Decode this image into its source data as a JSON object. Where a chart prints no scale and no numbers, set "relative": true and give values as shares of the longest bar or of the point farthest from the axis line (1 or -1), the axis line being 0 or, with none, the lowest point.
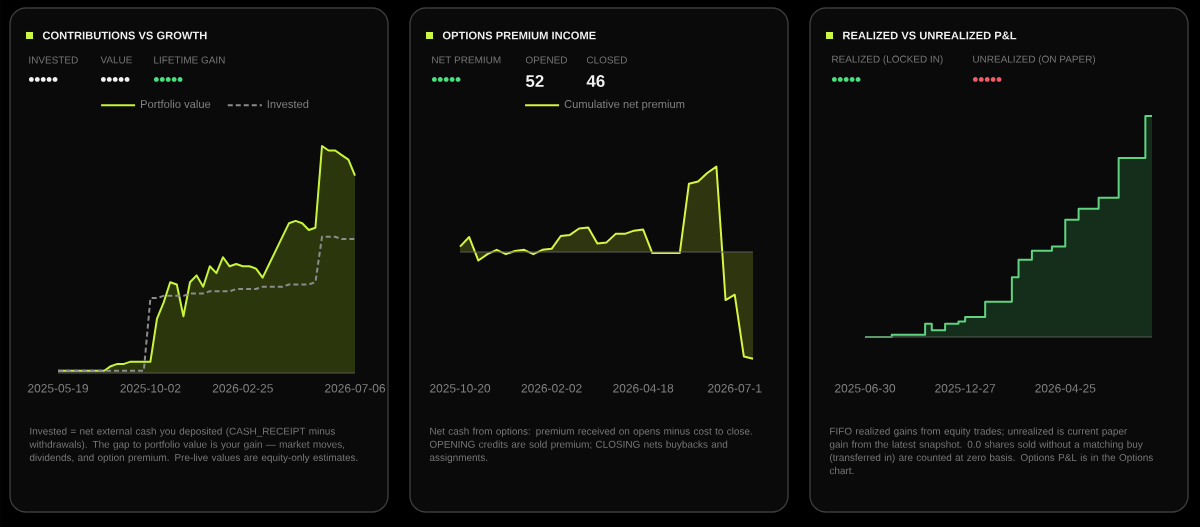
{
  "chart_data": [
    {
      "type": "area",
      "title": "CONTRIBUTIONS VS GROWTH",
      "relative": true,
      "legend": "top",
      "annotations": [
        "INVESTED",
        "•••••",
        "VALUE",
        "•••••",
        "LIFETIME GAIN",
        "•••••",
        "Invested = net external cash you deposited (CASH_RECEIPT minus withdrawals). The gap to portfolio value is your gain — market moves, dividends, and option premium. Pre-live values are equity-only estimates."
      ],
      "categories": [
        "2025-05-19",
        null,
        null,
        null,
        null,
        null,
        null,
        null,
        null,
        null,
        null,
        null,
        null,
        null,
        "2025-10-02",
        null,
        null,
        null,
        null,
        null,
        null,
        null,
        null,
        null,
        null,
        null,
        null,
        null,
        "2026-02-25",
        null,
        null,
        null,
        null,
        null,
        null,
        null,
        null,
        null,
        null,
        null,
        null,
        null,
        null,
        null,
        null,
        "2026-07-06"
      ],
      "series": [
        {
          "name": "Portfolio value",
          "color": "#c8f53a",
          "type": "area",
          "values": [
            0.01,
            0.01,
            0.01,
            0.01,
            0.01,
            0.01,
            0.01,
            0.01,
            0.03,
            0.04,
            0.04,
            0.05,
            0.05,
            0.05,
            0.05,
            0.24,
            0.31,
            0.4,
            0.39,
            0.25,
            0.4,
            0.43,
            0.38,
            0.47,
            0.44,
            0.51,
            0.47,
            0.48,
            0.47,
            0.47,
            0.46,
            0.42,
            0.48,
            0.54,
            0.6,
            0.66,
            0.67,
            0.66,
            0.63,
            0.64,
            1,
            0.98,
            0.98,
            0.96,
            0.94,
            0.87
          ]
        },
        {
          "name": "Invested",
          "color": "#8c8c8c",
          "type": "line",
          "line_style": "dashed",
          "values": [
            0.01,
            0.01,
            0.01,
            0.01,
            0.01,
            0.01,
            0.01,
            0.01,
            0.01,
            0.01,
            0.01,
            0.01,
            0.01,
            0.01,
            0.33,
            0.33,
            0.34,
            0.34,
            0.34,
            0.34,
            0.35,
            0.35,
            0.35,
            0.36,
            0.36,
            0.36,
            0.36,
            0.37,
            0.37,
            0.37,
            0.37,
            0.38,
            0.38,
            0.38,
            0.38,
            0.39,
            0.39,
            0.39,
            0.39,
            0.4,
            0.6,
            0.6,
            0.6,
            0.59,
            0.59,
            0.59
          ]
        }
      ]
    },
    {
      "type": "area",
      "title": "OPTIONS PREMIUM INCOME",
      "relative": true,
      "legend": "top",
      "annotations": [
        "NET PREMIUM",
        "•••••",
        "OPENED",
        "52",
        "CLOSED",
        "46",
        "Net cash from options: premium received on opens minus cost to close. OPENING credits are sold premium; CLOSING nets buybacks and assignments."
      ],
      "categories": [
        "2025-10-20",
        null,
        null,
        null,
        null,
        null,
        null,
        null,
        null,
        null,
        "2026-02-02",
        null,
        null,
        null,
        null,
        null,
        null,
        null,
        null,
        null,
        "2026-04-18",
        null,
        null,
        null,
        null,
        null,
        null,
        null,
        null,
        null,
        "2026-07-1",
        null,
        null
      ],
      "series": [
        {
          "name": "Cumulative net premium",
          "color": "#d7f542",
          "values": [
            0.05,
            0.14,
            -0.08,
            -0.02,
            0.02,
            -0.02,
            0.01,
            0.02,
            -0.02,
            0.02,
            0.03,
            0.15,
            0.16,
            0.22,
            0.23,
            0.08,
            0.09,
            0.17,
            0.17,
            0.2,
            0.21,
            -0.01,
            -0.01,
            -0.01,
            -0.01,
            0.64,
            0.66,
            0.74,
            0.8,
            -0.45,
            -0.4,
            -0.98,
            -1
          ]
        }
      ]
    },
    {
      "type": "step",
      "title": "REALIZED VS UNREALIZED P&L",
      "relative": true,
      "annotations": [
        "REALIZED (LOCKED IN)",
        "•••••",
        "UNREALIZED (ON PAPER)",
        "•••••",
        "FIFO realized gains from equity trades; unrealized is current paper gain from the latest snapshot. 0.0 shares sold without a matching buy (transferred in) are counted at zero basis. Options P&L is in the Options chart."
      ],
      "categories": [
        "2025-06-30",
        null,
        null,
        null,
        null,
        null,
        null,
        null,
        null,
        null,
        null,
        null,
        null,
        null,
        null,
        "2025-12-27",
        null,
        null,
        null,
        null,
        null,
        null,
        null,
        null,
        null,
        null,
        null,
        null,
        null,
        null,
        "2026-04-25",
        null,
        null,
        null,
        null,
        null,
        null,
        null,
        null,
        null,
        null,
        null,
        null,
        null
      ],
      "series": [
        {
          "color": "#5fd37f",
          "values": [
            0,
            0,
            0,
            0,
            0.01,
            0.01,
            0.01,
            0.01,
            0.01,
            0.06,
            0.03,
            0.03,
            0.06,
            0.06,
            0.07,
            0.09,
            0.09,
            0.09,
            0.16,
            0.16,
            0.16,
            0.16,
            0.27,
            0.35,
            0.35,
            0.39,
            0.39,
            0.39,
            0.41,
            0.41,
            0.53,
            0.53,
            0.58,
            0.58,
            0.58,
            0.63,
            0.63,
            0.63,
            0.81,
            0.81,
            0.81,
            0.81,
            1,
            1
          ]
        }
      ]
    }
  ]
}
